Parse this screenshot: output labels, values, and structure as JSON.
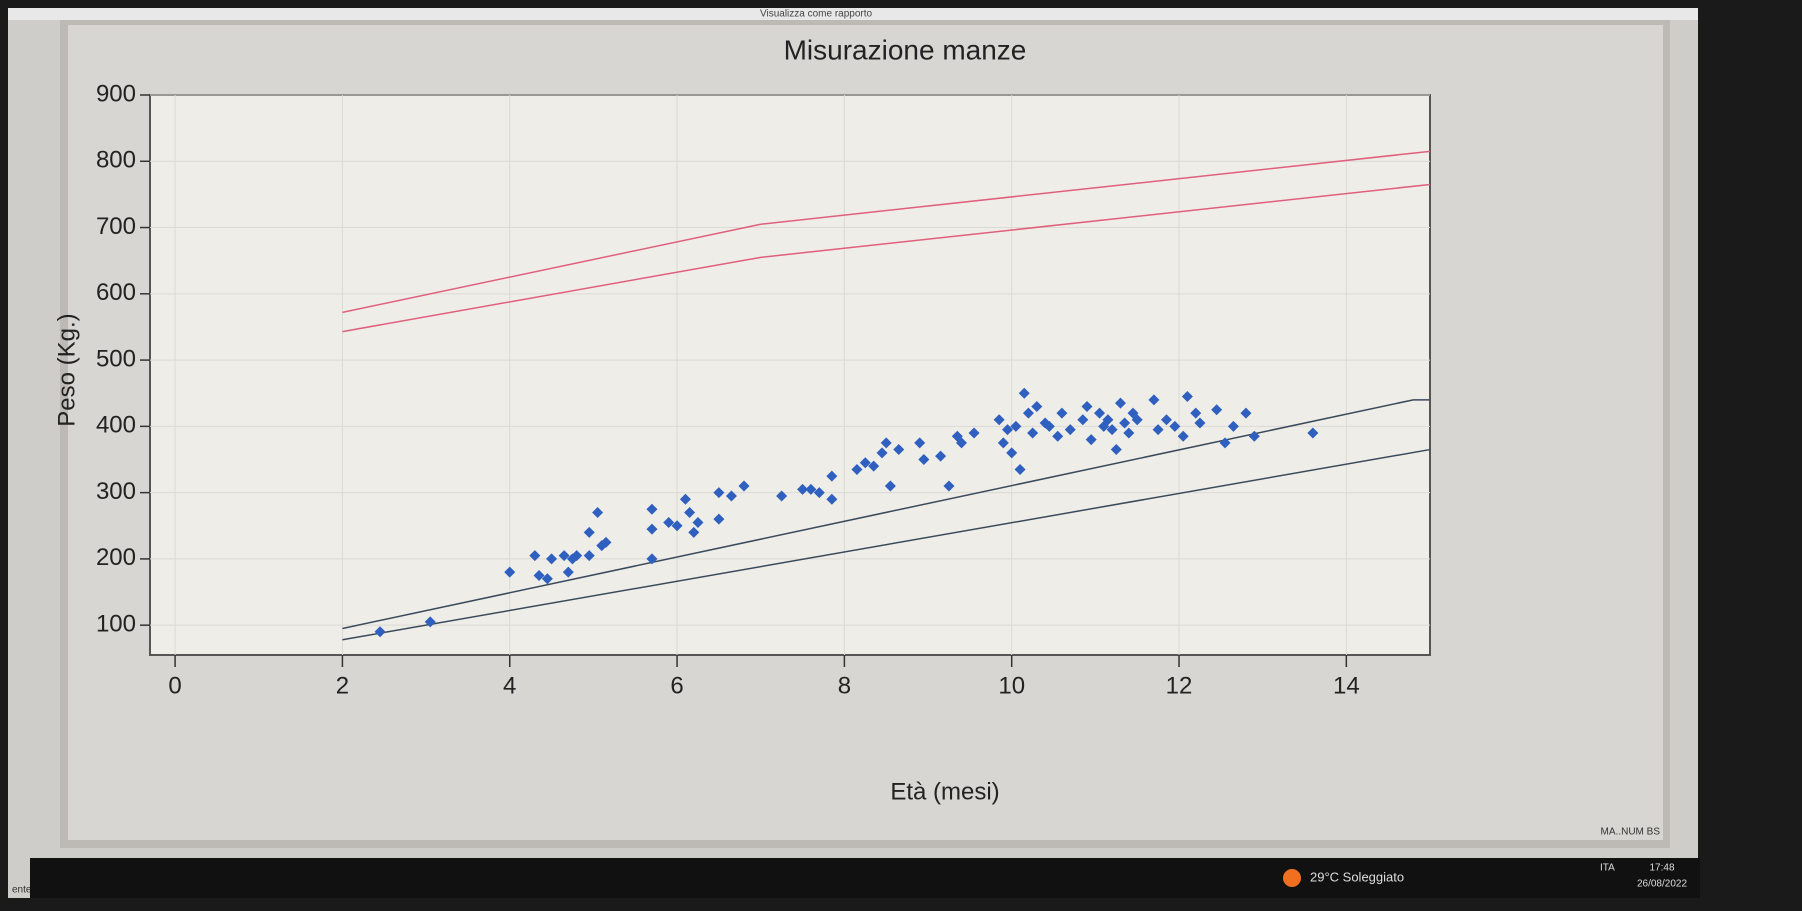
{
  "toolbar": {
    "button": "Visualizza come rapporto"
  },
  "status": {
    "left": "ente",
    "right": "MA..NUM BS"
  },
  "taskbar": {
    "weather": "29°C Soleggiato",
    "lang": "ITA",
    "time": "17:48",
    "date": "26/08/2022"
  },
  "chart_data": {
    "type": "scatter",
    "title": "Misurazione manze",
    "xlabel": "Età (mesi)",
    "ylabel": "Peso (Kg.)",
    "color": "#2f5fbf",
    "x": [
      2.45,
      3.05,
      4,
      4.3,
      4.35,
      4.45,
      4.5,
      4.65,
      4.7,
      4.75,
      4.8,
      4.95,
      4.95,
      5.05,
      5.1,
      5.15,
      5.7,
      5.7,
      5.7,
      5.9,
      6,
      6.1,
      6.15,
      6.2,
      6.25,
      6.5,
      6.5,
      6.65,
      6.8,
      7.25,
      7.5,
      7.6,
      7.7,
      7.85,
      7.85,
      8.15,
      8.25,
      8.35,
      8.45,
      8.5,
      8.55,
      8.65,
      8.9,
      8.95,
      9.15,
      9.25,
      9.35,
      9.4,
      9.55,
      9.85,
      9.9,
      9.95,
      10,
      10.05,
      10.1,
      10.15,
      10.2,
      10.25,
      10.3,
      10.4,
      10.45,
      10.55,
      10.6,
      10.7,
      10.85,
      10.9,
      10.95,
      11.05,
      11.1,
      11.15,
      11.2,
      11.25,
      11.3,
      11.35,
      11.4,
      11.45,
      11.5,
      11.7,
      11.75,
      11.85,
      11.95,
      12.05,
      12.1,
      12.2,
      12.25,
      12.45,
      12.55,
      12.65,
      12.8,
      12.9,
      13.6
    ],
    "values": [
      90,
      105,
      180,
      205,
      175,
      170,
      200,
      205,
      180,
      200,
      205,
      205,
      240,
      270,
      220,
      225,
      275,
      200,
      245,
      255,
      250,
      290,
      270,
      240,
      255,
      260,
      300,
      295,
      310,
      295,
      305,
      305,
      300,
      325,
      290,
      335,
      345,
      340,
      360,
      375,
      310,
      365,
      375,
      350,
      355,
      310,
      385,
      375,
      390,
      410,
      375,
      395,
      360,
      400,
      335,
      450,
      420,
      390,
      430,
      405,
      400,
      385,
      420,
      395,
      410,
      430,
      380,
      420,
      400,
      410,
      395,
      365,
      435,
      405,
      390,
      420,
      410,
      440,
      395,
      410,
      400,
      385,
      445,
      420,
      405,
      425,
      375,
      400,
      420,
      385,
      390
    ],
    "lines": [
      {
        "color": "#e0607a",
        "x": [
          2,
          7,
          15
        ],
        "values": [
          572,
          705,
          815
        ]
      },
      {
        "color": "#e0607a",
        "x": [
          2,
          7,
          15
        ],
        "values": [
          543,
          655,
          765
        ]
      },
      {
        "color": "#3a4a5a",
        "x": [
          2,
          14.8,
          15
        ],
        "values": [
          95,
          440,
          440
        ]
      },
      {
        "color": "#3a4a5a",
        "x": [
          2,
          15
        ],
        "values": [
          78,
          365
        ]
      }
    ],
    "xlim": [
      -0.3,
      15
    ],
    "xticks": [
      0,
      2,
      4,
      6,
      8,
      10,
      12,
      14
    ],
    "ylim": [
      55,
      900
    ],
    "yticks": [
      100,
      200,
      300,
      400,
      500,
      600,
      700,
      800,
      900
    ]
  }
}
